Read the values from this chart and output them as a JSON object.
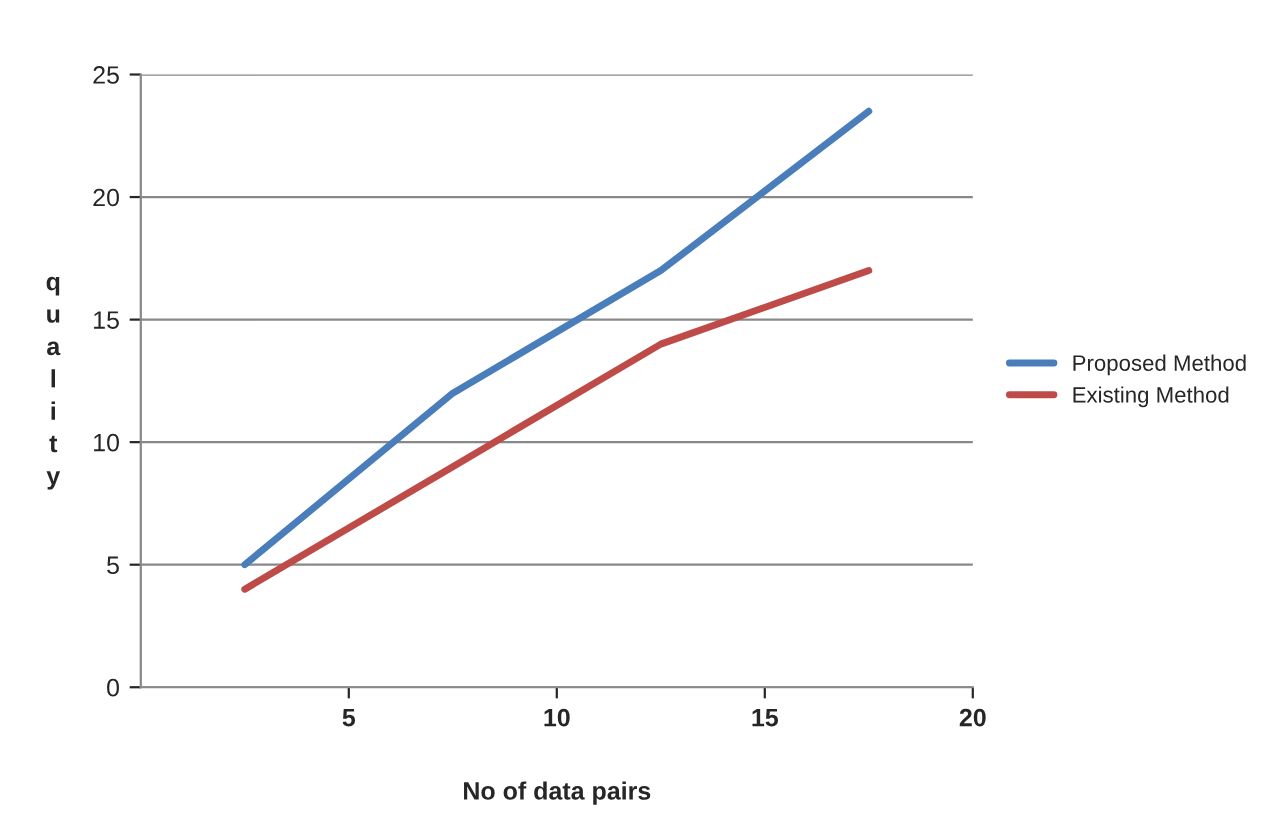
{
  "chart_data": {
    "type": "line",
    "xlabel": "No of data pairs",
    "ylabel": "quality",
    "x": [
      2.5,
      7.5,
      12.5,
      17.5
    ],
    "series": [
      {
        "name": "Proposed Method",
        "color": "#4a7ebb",
        "values": [
          5,
          12,
          17,
          23.5
        ]
      },
      {
        "name": "Existing Method",
        "color": "#be4b48",
        "values": [
          4,
          9,
          14,
          17
        ]
      }
    ],
    "xlim": [
      0,
      20
    ],
    "xticks": [
      5,
      10,
      15,
      20
    ],
    "ylim": [
      0,
      25
    ],
    "yticks": [
      0,
      5,
      10,
      15,
      20,
      25
    ],
    "grid": "y",
    "legend": "right",
    "marker": "none",
    "line_style": "solid"
  }
}
